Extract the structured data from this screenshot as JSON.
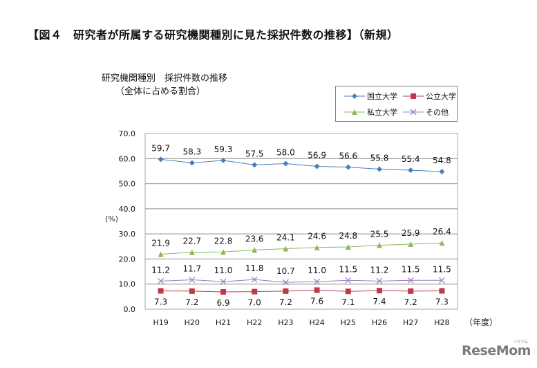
{
  "figure": {
    "title": "【図４　研究者が所属する研究機関種別に見た採択件数の推移】（新規）"
  },
  "chart_data": {
    "type": "line",
    "title": "研究機関種別　採択件数の推移",
    "subtitle": "（全体に占める割合）",
    "xlabel": "（年度）",
    "ylabel": "(%)",
    "ylim": [
      0,
      70
    ],
    "yticks": [
      "0.0",
      "10.0",
      "20.0",
      "30.0",
      "40.0",
      "50.0",
      "60.0",
      "70.0"
    ],
    "grid": true,
    "legend_position": "top-right",
    "categories": [
      "H19",
      "H20",
      "H21",
      "H22",
      "H23",
      "H24",
      "H25",
      "H26",
      "H27",
      "H28"
    ],
    "series": [
      {
        "name": "国立大学",
        "marker": "diamond",
        "color": "#4a7ebb",
        "values": [
          59.7,
          58.3,
          59.3,
          57.5,
          58.0,
          56.9,
          56.6,
          55.8,
          55.4,
          54.8
        ],
        "labels": [
          "59.7",
          "58.3",
          "59.3",
          "57.5",
          "58.0",
          "56.9",
          "56.6",
          "55.8",
          "55.4",
          "54.8"
        ]
      },
      {
        "name": "公立大学",
        "marker": "square",
        "color": "#c0394a",
        "values": [
          7.3,
          7.2,
          6.9,
          7.0,
          7.2,
          7.6,
          7.1,
          7.4,
          7.2,
          7.3
        ],
        "labels": [
          "7.3",
          "7.2",
          "6.9",
          "7.0",
          "7.2",
          "7.6",
          "7.1",
          "7.4",
          "7.2",
          "7.3"
        ]
      },
      {
        "name": "私立大学",
        "marker": "triangle",
        "color": "#8cb85c",
        "values": [
          21.9,
          22.7,
          22.8,
          23.6,
          24.1,
          24.6,
          24.8,
          25.5,
          25.9,
          26.4
        ],
        "labels": [
          "21.9",
          "22.7",
          "22.8",
          "23.6",
          "24.1",
          "24.6",
          "24.8",
          "25.5",
          "25.9",
          "26.4"
        ]
      },
      {
        "name": "その他",
        "marker": "x",
        "color": "#9b7fbf",
        "values": [
          11.2,
          11.7,
          11.0,
          11.8,
          10.7,
          11.0,
          11.5,
          11.2,
          11.5,
          11.5
        ],
        "labels": [
          "11.2",
          "11.7",
          "11.0",
          "11.8",
          "10.7",
          "11.0",
          "11.5",
          "11.2",
          "11.5",
          "11.5"
        ]
      }
    ]
  },
  "legend": {
    "items": [
      {
        "label": "国立大学"
      },
      {
        "label": "公立大学"
      },
      {
        "label": "私立大学"
      },
      {
        "label": "その他"
      }
    ]
  },
  "watermark": {
    "text": "ReseMom",
    "kana": "リセマム"
  }
}
